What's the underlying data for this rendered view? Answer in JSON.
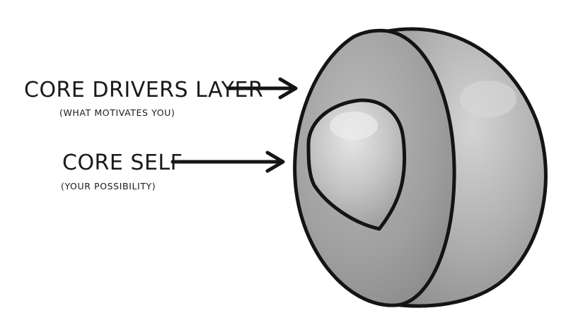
{
  "labels": {
    "core_drivers": {
      "title": "CORE DRIVERS LAYER",
      "subtitle": "(WHAT MOTIVATES YOU)"
    },
    "core_self": {
      "title": "CORE SELF",
      "subtitle": "(YOUR POSSIBILITY)"
    }
  },
  "colors": {
    "outline": "#141414",
    "outer_layer": "#9c9c9c",
    "outer_layer_light": "#c9c9c9",
    "core": "#b4b4b4",
    "core_light": "#dadada",
    "background": "#ffffff"
  }
}
